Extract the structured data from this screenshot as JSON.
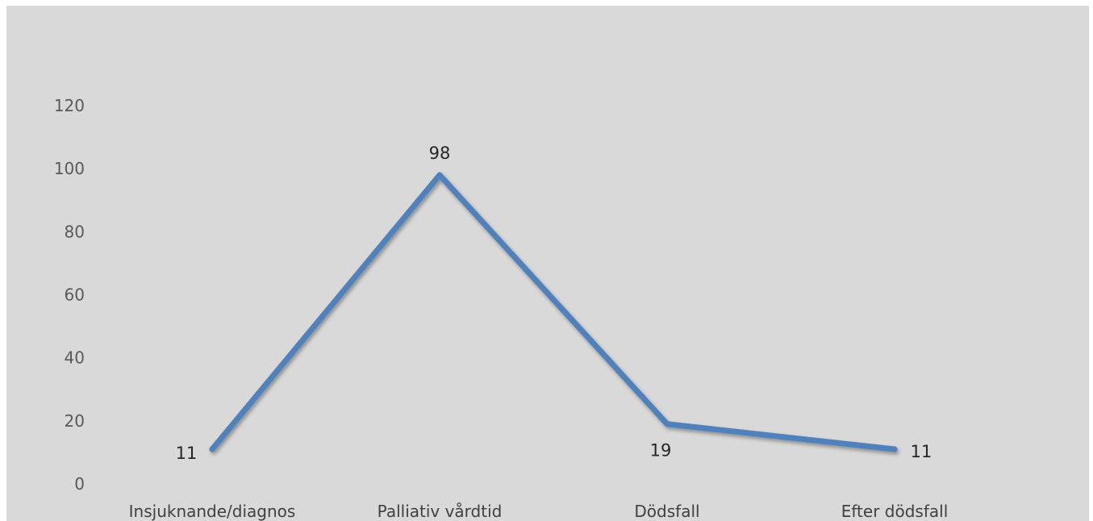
{
  "chart_data": {
    "type": "line",
    "categories": [
      "Insjuknande/diagnos",
      "Palliativ vårdtid",
      "Dödsfall",
      "Efter dödsfall"
    ],
    "values": [
      11,
      98,
      19,
      11
    ],
    "data_labels": [
      "11",
      "98",
      "19",
      "11"
    ],
    "y_ticks": [
      "0",
      "20",
      "40",
      "60",
      "80",
      "100",
      "120"
    ],
    "ylim": [
      0,
      120
    ],
    "grid": false,
    "legend": "none",
    "line_color": "#4f81bd",
    "background_color": "#d9d9d9"
  }
}
